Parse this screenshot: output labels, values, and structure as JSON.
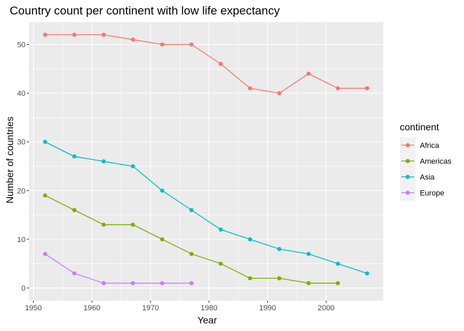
{
  "chart_data": {
    "type": "line",
    "title": "Country count per continent with low life expectancy",
    "xlabel": "Year",
    "ylabel": "Number of countries",
    "xlim": [
      1949.25,
      2009.75
    ],
    "ylim": [
      -2.6,
      54.6
    ],
    "x_ticks": [
      1950,
      1960,
      1970,
      1980,
      1990,
      2000
    ],
    "y_ticks": [
      0,
      10,
      20,
      30,
      40,
      50
    ],
    "grid": true,
    "legend_position": "right",
    "legend_title": "continent",
    "series": [
      {
        "name": "Africa",
        "color": "#F8766D",
        "x": [
          1952,
          1957,
          1962,
          1967,
          1972,
          1977,
          1982,
          1987,
          1992,
          1997,
          2002,
          2007
        ],
        "values": [
          52,
          52,
          52,
          51,
          50,
          50,
          46,
          41,
          40,
          44,
          41,
          41
        ]
      },
      {
        "name": "Americas",
        "color": "#7CAE00",
        "x": [
          1952,
          1957,
          1962,
          1967,
          1972,
          1977,
          1982,
          1987,
          1992,
          1997,
          2002
        ],
        "values": [
          19,
          16,
          13,
          13,
          10,
          7,
          5,
          2,
          2,
          1,
          1
        ]
      },
      {
        "name": "Asia",
        "color": "#00BFC4",
        "x": [
          1952,
          1957,
          1962,
          1967,
          1972,
          1977,
          1982,
          1987,
          1992,
          1997,
          2002,
          2007
        ],
        "values": [
          30,
          27,
          26,
          25,
          20,
          16,
          12,
          10,
          8,
          7,
          5,
          3
        ]
      },
      {
        "name": "Europe",
        "color": "#C77CFF",
        "x": [
          1952,
          1957,
          1962,
          1967,
          1972,
          1977
        ],
        "values": [
          7,
          3,
          1,
          1,
          1,
          1
        ]
      }
    ]
  }
}
